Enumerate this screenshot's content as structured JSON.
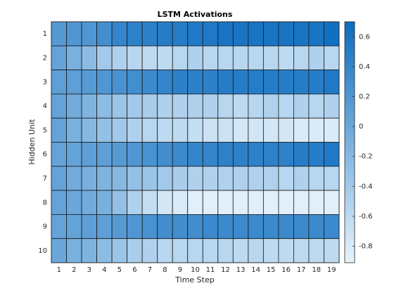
{
  "chart_data": {
    "type": "heatmap",
    "title": "LSTM Activations",
    "xlabel": "Time Step",
    "ylabel": "Hidden Unit",
    "x": [
      1,
      2,
      3,
      4,
      5,
      6,
      7,
      8,
      9,
      10,
      11,
      12,
      13,
      14,
      15,
      16,
      17,
      18,
      19
    ],
    "y": [
      1,
      2,
      3,
      4,
      5,
      6,
      7,
      8,
      9,
      10
    ],
    "values": [
      [
        0.15,
        0.2,
        0.2,
        0.3,
        0.4,
        0.45,
        0.45,
        0.5,
        0.5,
        0.55,
        0.55,
        0.6,
        0.6,
        0.6,
        0.6,
        0.6,
        0.6,
        0.6,
        0.65
      ],
      [
        0.05,
        -0.1,
        -0.25,
        -0.4,
        -0.5,
        -0.55,
        -0.6,
        -0.6,
        -0.55,
        -0.5,
        -0.55,
        -0.55,
        -0.55,
        -0.55,
        -0.55,
        -0.6,
        -0.55,
        -0.5,
        -0.55
      ],
      [
        0.1,
        0.1,
        0.15,
        0.2,
        0.25,
        0.3,
        0.35,
        0.4,
        0.45,
        0.45,
        0.45,
        0.5,
        0.5,
        0.5,
        0.5,
        0.5,
        0.5,
        0.5,
        0.55
      ],
      [
        0.05,
        -0.05,
        -0.15,
        -0.25,
        -0.35,
        -0.4,
        -0.45,
        -0.5,
        -0.5,
        -0.5,
        -0.5,
        -0.55,
        -0.6,
        -0.55,
        -0.5,
        -0.55,
        -0.5,
        -0.55,
        -0.5
      ],
      [
        0.05,
        -0.1,
        -0.2,
        -0.3,
        -0.4,
        -0.5,
        -0.55,
        -0.6,
        -0.6,
        -0.65,
        -0.7,
        -0.7,
        -0.75,
        -0.75,
        -0.75,
        -0.75,
        -0.8,
        -0.8,
        -0.8
      ],
      [
        0.05,
        0.05,
        0.1,
        0.1,
        0.15,
        0.2,
        0.25,
        0.3,
        0.35,
        0.4,
        0.4,
        0.45,
        0.45,
        0.45,
        0.45,
        0.45,
        0.5,
        0.5,
        0.55
      ],
      [
        0.05,
        -0.05,
        -0.1,
        -0.15,
        -0.2,
        -0.3,
        -0.35,
        -0.4,
        -0.45,
        -0.5,
        -0.5,
        -0.5,
        -0.5,
        -0.5,
        -0.5,
        -0.55,
        -0.5,
        -0.55,
        -0.55
      ],
      [
        0.05,
        0,
        -0.05,
        -0.1,
        -0.3,
        -0.5,
        -0.65,
        -0.75,
        -0.8,
        -0.85,
        -0.85,
        -0.85,
        -0.85,
        -0.85,
        -0.85,
        -0.85,
        -0.85,
        -0.85,
        -0.85
      ],
      [
        0.05,
        0.05,
        0.1,
        0.1,
        0.15,
        0.2,
        0.25,
        0.3,
        0.3,
        0.3,
        0.35,
        0.35,
        0.35,
        0.35,
        0.35,
        0.35,
        0.35,
        0.35,
        0.35
      ],
      [
        0,
        -0.1,
        -0.15,
        -0.25,
        -0.35,
        -0.45,
        -0.5,
        -0.55,
        -0.55,
        -0.55,
        -0.55,
        -0.55,
        -0.6,
        -0.55,
        -0.6,
        -0.6,
        -0.6,
        -0.6,
        -0.6
      ]
    ],
    "colormap": [
      "#e8f4fc",
      "#0b6cc0"
    ],
    "clim": [
      -0.91,
      0.7
    ],
    "cticks": [
      0.6,
      0.4,
      0.2,
      0,
      -0.2,
      -0.4,
      -0.6,
      -0.8
    ]
  }
}
